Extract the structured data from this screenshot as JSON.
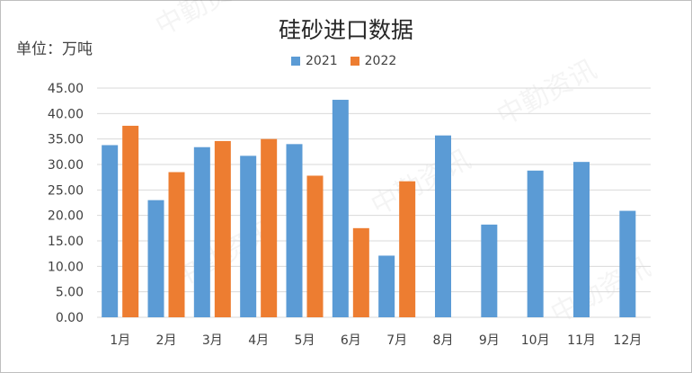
{
  "chart_data": {
    "type": "bar",
    "title": "硅砂进口数据",
    "unit_label": "单位：万吨",
    "categories": [
      "1月",
      "2月",
      "3月",
      "4月",
      "5月",
      "6月",
      "7月",
      "8月",
      "9月",
      "10月",
      "11月",
      "12月"
    ],
    "series": [
      {
        "name": "2021",
        "color": "#5b9bd5",
        "values": [
          33.8,
          23.0,
          33.4,
          31.7,
          34.0,
          42.7,
          12.1,
          35.7,
          18.2,
          28.8,
          30.5,
          20.9
        ]
      },
      {
        "name": "2022",
        "color": "#ed7d31",
        "values": [
          37.6,
          28.5,
          34.6,
          35.0,
          27.8,
          17.5,
          26.7,
          null,
          null,
          null,
          null,
          null
        ]
      }
    ],
    "ylim": [
      0,
      45
    ],
    "yticks": [
      "0.00",
      "5.00",
      "10.00",
      "15.00",
      "20.00",
      "25.00",
      "30.00",
      "35.00",
      "40.00",
      "45.00"
    ],
    "grid": true,
    "legend_position": "top-center"
  },
  "watermark": "中勤资讯"
}
